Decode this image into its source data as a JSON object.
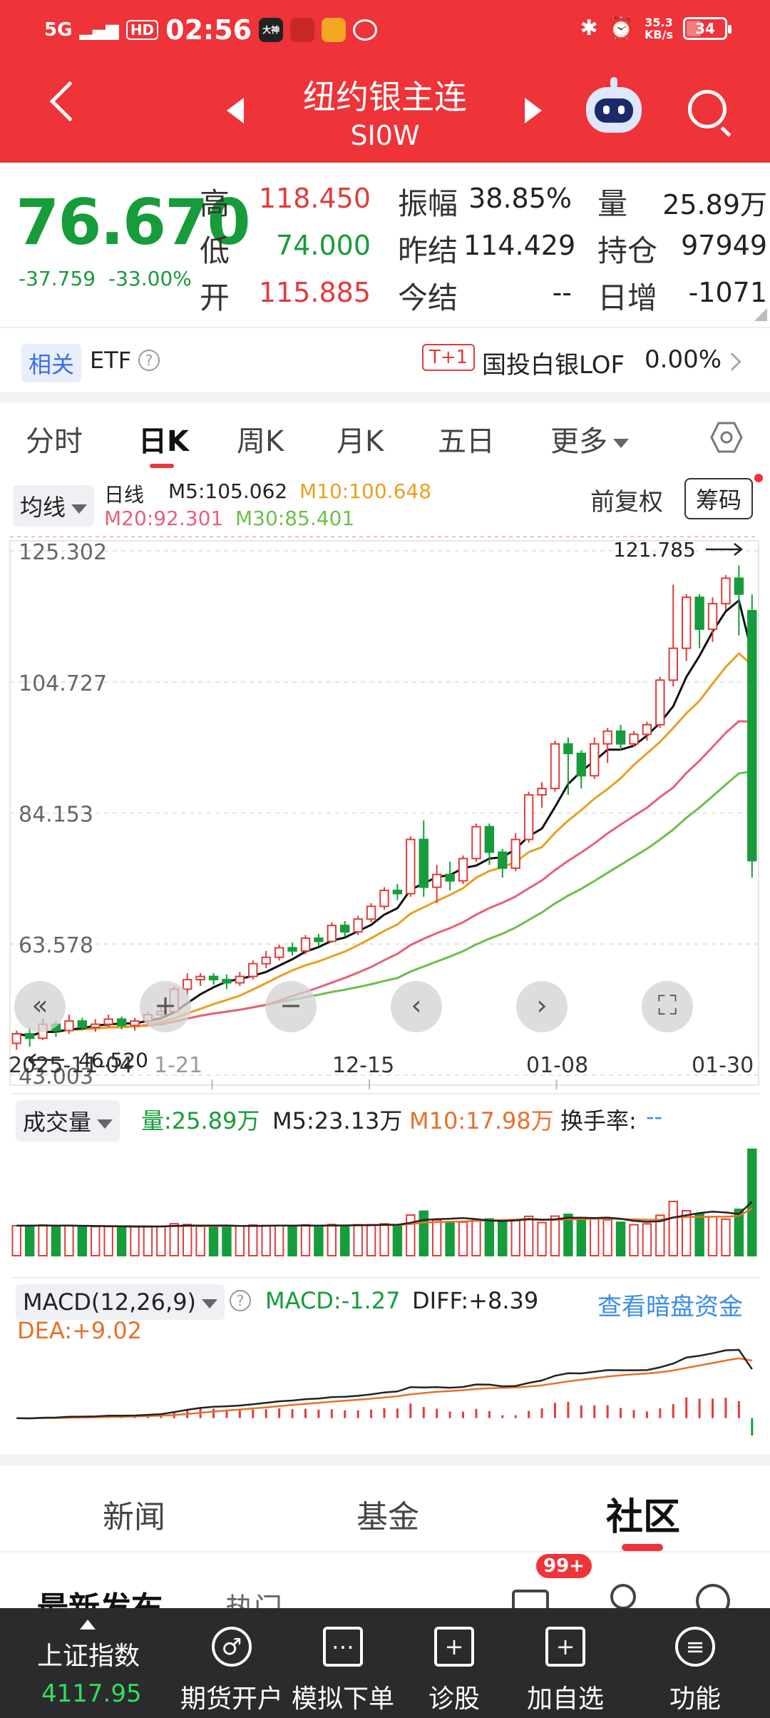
{
  "status_bar": {
    "network": "5G",
    "hd": "HD",
    "time": "02:56",
    "app_tag": "大神",
    "net_speed_value": "35.3",
    "net_speed_unit": "KB/s",
    "battery": "34"
  },
  "header": {
    "title": "纽约银主连",
    "subtitle": "SI0W"
  },
  "quote": {
    "last": "76.670",
    "change": "-37.759",
    "change_pct": "-33.00%",
    "fields": {
      "high_label": "高",
      "high": "118.450",
      "low_label": "低",
      "low": "74.000",
      "open_label": "开",
      "open": "115.885",
      "amp_label": "振幅",
      "amp": "38.85%",
      "prev_label": "昨结",
      "prev": "114.429",
      "settle_label": "今结",
      "settle": "--",
      "vol_label": "量",
      "vol": "25.89万",
      "oi_label": "持仓",
      "oi": "97949",
      "oi_chg_label": "日增",
      "oi_chg": "-1071"
    }
  },
  "related": {
    "tag": "相关",
    "etf": "ETF",
    "help": "?",
    "t1": "T+1",
    "fund_name": "国投白银LOF",
    "fund_pct": "0.00%"
  },
  "period_tabs": {
    "tabs": [
      "分时",
      "日K",
      "周K",
      "月K",
      "五日",
      "更多"
    ],
    "active": "日K"
  },
  "kline": {
    "indicator_btn": "均线",
    "line_label": "日线",
    "m5": "M5:105.062",
    "m10": "M10:100.648",
    "m20": "M20:92.301",
    "m30": "M30:85.401",
    "adjust": "前复权",
    "chips": "筹码",
    "y_ticks": [
      "125.302",
      "104.727",
      "84.153",
      "63.578",
      "43.003"
    ],
    "max_label": "121.785",
    "min_label": "46.520",
    "x_ticks": [
      "2025-11-04",
      "1-21",
      "12-15",
      "01-08",
      "01-30"
    ]
  },
  "controls": {
    "first": "«",
    "zoom_in": "+",
    "zoom_out": "−",
    "prev": "‹",
    "next": "›",
    "fullscreen": "⛶"
  },
  "volume": {
    "indicator_btn": "成交量",
    "vol": "量:25.89万",
    "m5": "M5:23.13万",
    "m10": "M10:17.98万",
    "turnover_label": "换手率:",
    "turnover": "--"
  },
  "macd": {
    "indicator_btn": "MACD(12,26,9)",
    "help": "?",
    "macd": "MACD:-1.27",
    "diff": "DIFF:+8.39",
    "dea": "DEA:+9.02",
    "link": "查看暗盘资金"
  },
  "bottom_tabs": {
    "tabs": [
      "新闻",
      "基金",
      "社区"
    ],
    "active": "社区"
  },
  "feed": {
    "latest": "最新发布",
    "hot": "热门",
    "badge": "99+"
  },
  "bottom_nav": {
    "index_name": "上证指数",
    "index_value": "4117.95",
    "items": [
      "期货开户",
      "模拟下单",
      "诊股",
      "加自选",
      "功能"
    ]
  },
  "colors": {
    "brand": "#ee3339",
    "up": "#e03c3c",
    "down": "#169c3a",
    "ma5": "#111111",
    "ma10": "#e8a020",
    "ma20": "#e8607a",
    "ma30": "#6cc04a"
  },
  "chart_data": [
    {
      "type": "candlestick",
      "title": "日线",
      "y_range": [
        43.003,
        125.302
      ],
      "x_labels": [
        "2025-11-04",
        "1-21",
        "12-15",
        "01-08",
        "01-30"
      ],
      "highest": 121.785,
      "lowest": 46.52,
      "candles": [
        [
          48.0,
          49.5,
          47.0,
          50.0
        ],
        [
          49.5,
          48.8,
          47.5,
          50.5
        ],
        [
          48.8,
          51.0,
          48.5,
          52.0
        ],
        [
          51.0,
          50.0,
          49.0,
          51.5
        ],
        [
          50.0,
          51.5,
          49.5,
          52.5
        ],
        [
          51.5,
          50.5,
          50.0,
          52.0
        ],
        [
          50.5,
          51.0,
          49.8,
          51.8
        ],
        [
          51.0,
          51.8,
          50.5,
          52.5
        ],
        [
          51.8,
          50.8,
          50.2,
          52.2
        ],
        [
          50.8,
          51.5,
          50.0,
          52.0
        ],
        [
          51.5,
          52.5,
          51.0,
          53.0
        ],
        [
          52.5,
          53.0,
          52.0,
          54.0
        ],
        [
          53.0,
          56.5,
          52.8,
          57.0
        ],
        [
          56.5,
          58.0,
          55.5,
          59.0
        ],
        [
          58.0,
          58.5,
          57.0,
          59.0
        ],
        [
          58.5,
          58.0,
          57.2,
          59.0
        ],
        [
          58.0,
          57.5,
          56.5,
          58.8
        ],
        [
          57.5,
          58.5,
          57.0,
          59.2
        ],
        [
          58.5,
          60.5,
          58.0,
          61.0
        ],
        [
          60.5,
          61.5,
          59.8,
          62.5
        ],
        [
          61.5,
          63.0,
          61.0,
          63.5
        ],
        [
          63.0,
          62.5,
          61.8,
          63.8
        ],
        [
          62.5,
          64.5,
          62.0,
          65.0
        ],
        [
          64.5,
          64.0,
          63.2,
          65.2
        ],
        [
          64.0,
          66.5,
          63.8,
          67.0
        ],
        [
          66.5,
          65.5,
          64.8,
          67.2
        ],
        [
          65.5,
          67.5,
          65.0,
          68.0
        ],
        [
          67.5,
          69.5,
          67.0,
          70.0
        ],
        [
          69.5,
          72.0,
          69.0,
          72.5
        ],
        [
          72.0,
          71.5,
          70.5,
          73.0
        ],
        [
          71.5,
          80.0,
          71.0,
          80.5
        ],
        [
          80.0,
          72.5,
          71.0,
          83.0
        ],
        [
          72.5,
          74.5,
          70.0,
          76.0
        ],
        [
          74.5,
          73.5,
          72.0,
          76.5
        ],
        [
          73.5,
          77.0,
          73.0,
          77.5
        ],
        [
          77.0,
          82.0,
          76.5,
          82.5
        ],
        [
          82.0,
          78.0,
          76.0,
          82.5
        ],
        [
          78.0,
          75.5,
          74.0,
          78.5
        ],
        [
          75.5,
          80.0,
          75.0,
          81.0
        ],
        [
          80.0,
          87.0,
          79.5,
          87.5
        ],
        [
          87.0,
          88.0,
          85.0,
          89.0
        ],
        [
          88.0,
          95.0,
          87.5,
          95.5
        ],
        [
          95.0,
          93.5,
          87.0,
          96.0
        ],
        [
          93.5,
          90.0,
          88.0,
          94.0
        ],
        [
          90.0,
          95.0,
          89.5,
          96.0
        ],
        [
          95.0,
          97.0,
          92.0,
          97.5
        ],
        [
          97.0,
          95.0,
          94.0,
          98.0
        ],
        [
          95.0,
          96.5,
          94.5,
          97.0
        ],
        [
          96.5,
          98.0,
          95.5,
          98.5
        ],
        [
          98.0,
          105.0,
          97.5,
          105.5
        ],
        [
          105.0,
          110.0,
          104.0,
          120.0
        ],
        [
          110.0,
          118.0,
          108.0,
          118.5
        ],
        [
          118.0,
          113.0,
          110.0,
          118.5
        ],
        [
          113.0,
          117.0,
          111.0,
          118.0
        ],
        [
          117.0,
          121.0,
          116.0,
          121.5
        ],
        [
          121.0,
          118.5,
          112.0,
          123.0
        ],
        [
          115.9,
          76.67,
          74.0,
          118.45
        ]
      ]
    },
    {
      "type": "bar",
      "title": "成交量",
      "unit": "万",
      "latest": 25.89
    },
    {
      "type": "bar",
      "title": "MACD(12,26,9)",
      "macd": -1.27,
      "diff": 8.39,
      "dea": 9.02
    }
  ]
}
